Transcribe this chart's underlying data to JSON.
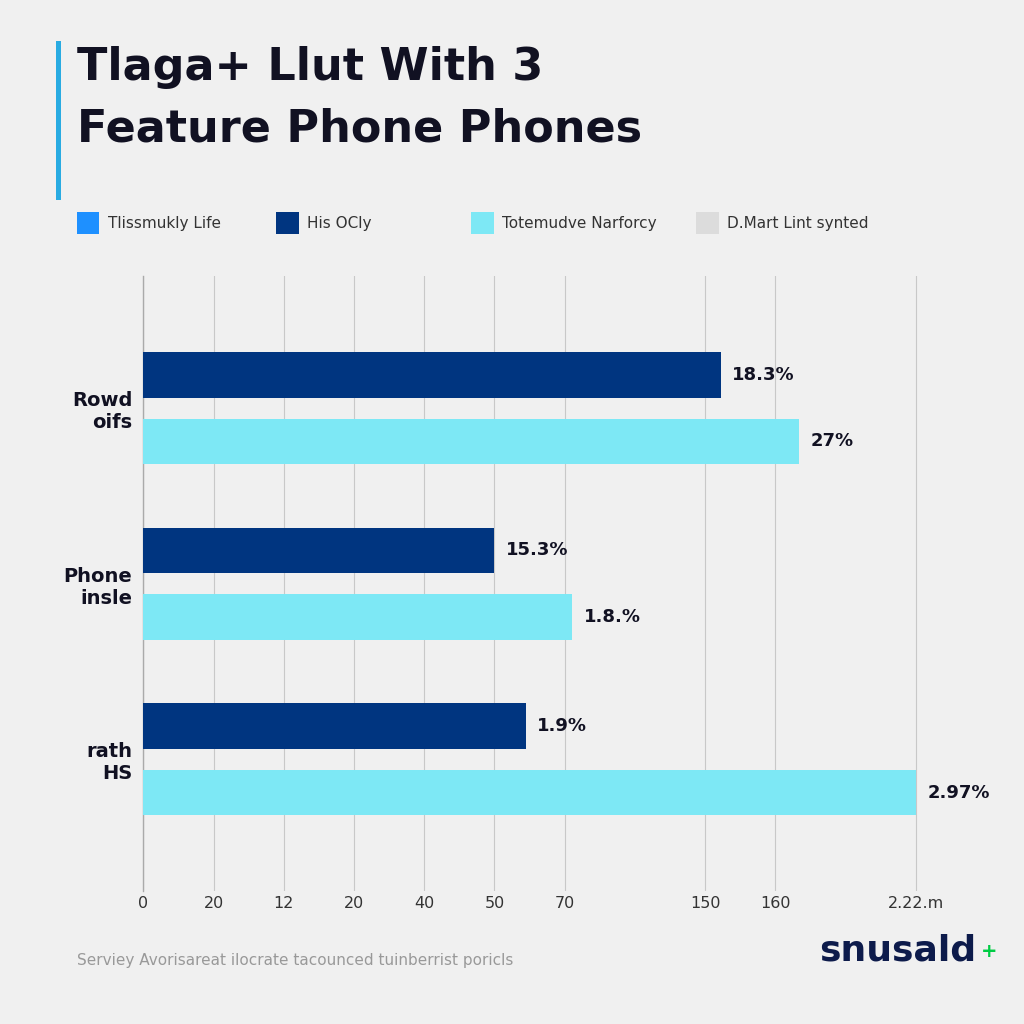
{
  "title_line1": "Tlaga+ Llut With 3",
  "title_line2": "Feature Phone Phones",
  "title_color": "#111122",
  "title_accent_color": "#29abe2",
  "background_color": "#f0f0f0",
  "legend_items": [
    {
      "label": "Tlissmukly Life",
      "color": "#1e90ff"
    },
    {
      "label": "His OCly",
      "color": "#003580"
    },
    {
      "label": "Totemudve Narforcy",
      "color": "#7de8f5"
    },
    {
      "label": "D.Mart Lint synted",
      "color": "#dcdcdc"
    }
  ],
  "bars": [
    {
      "category": "Rowd\noifs",
      "bar1_value": 148,
      "bar1_color": "#003580",
      "bar1_label": "18.3%",
      "bar2_value": 168,
      "bar2_color": "#7de8f5",
      "bar2_label": "27%"
    },
    {
      "category": "Phone\ninsle",
      "bar1_value": 90,
      "bar1_color": "#003580",
      "bar1_label": "15.3%",
      "bar2_value": 110,
      "bar2_color": "#7de8f5",
      "bar2_label": "1.8.%"
    },
    {
      "category": "rath\nHS",
      "bar1_value": 98,
      "bar1_color": "#003580",
      "bar1_label": "1.9%",
      "bar2_value": 198,
      "bar2_color": "#7de8f5",
      "bar2_label": "2.97%"
    }
  ],
  "xlim_max": 210,
  "xtick_positions": [
    0,
    18,
    36,
    54,
    72,
    90,
    108,
    144,
    162,
    198
  ],
  "xtick_labels": [
    "0",
    "20",
    "12",
    "20",
    "40",
    "50",
    "70",
    "150",
    "160",
    "2.22.m"
  ],
  "grid_color": "#c8c8c8",
  "footnote": "Serviey Avorisareat ilocrate tacounced tuinberrist poricls",
  "brand": "snusald",
  "brand_accent": "+",
  "brand_color": "#0d1b4b",
  "brand_accent_color": "#00cc44"
}
